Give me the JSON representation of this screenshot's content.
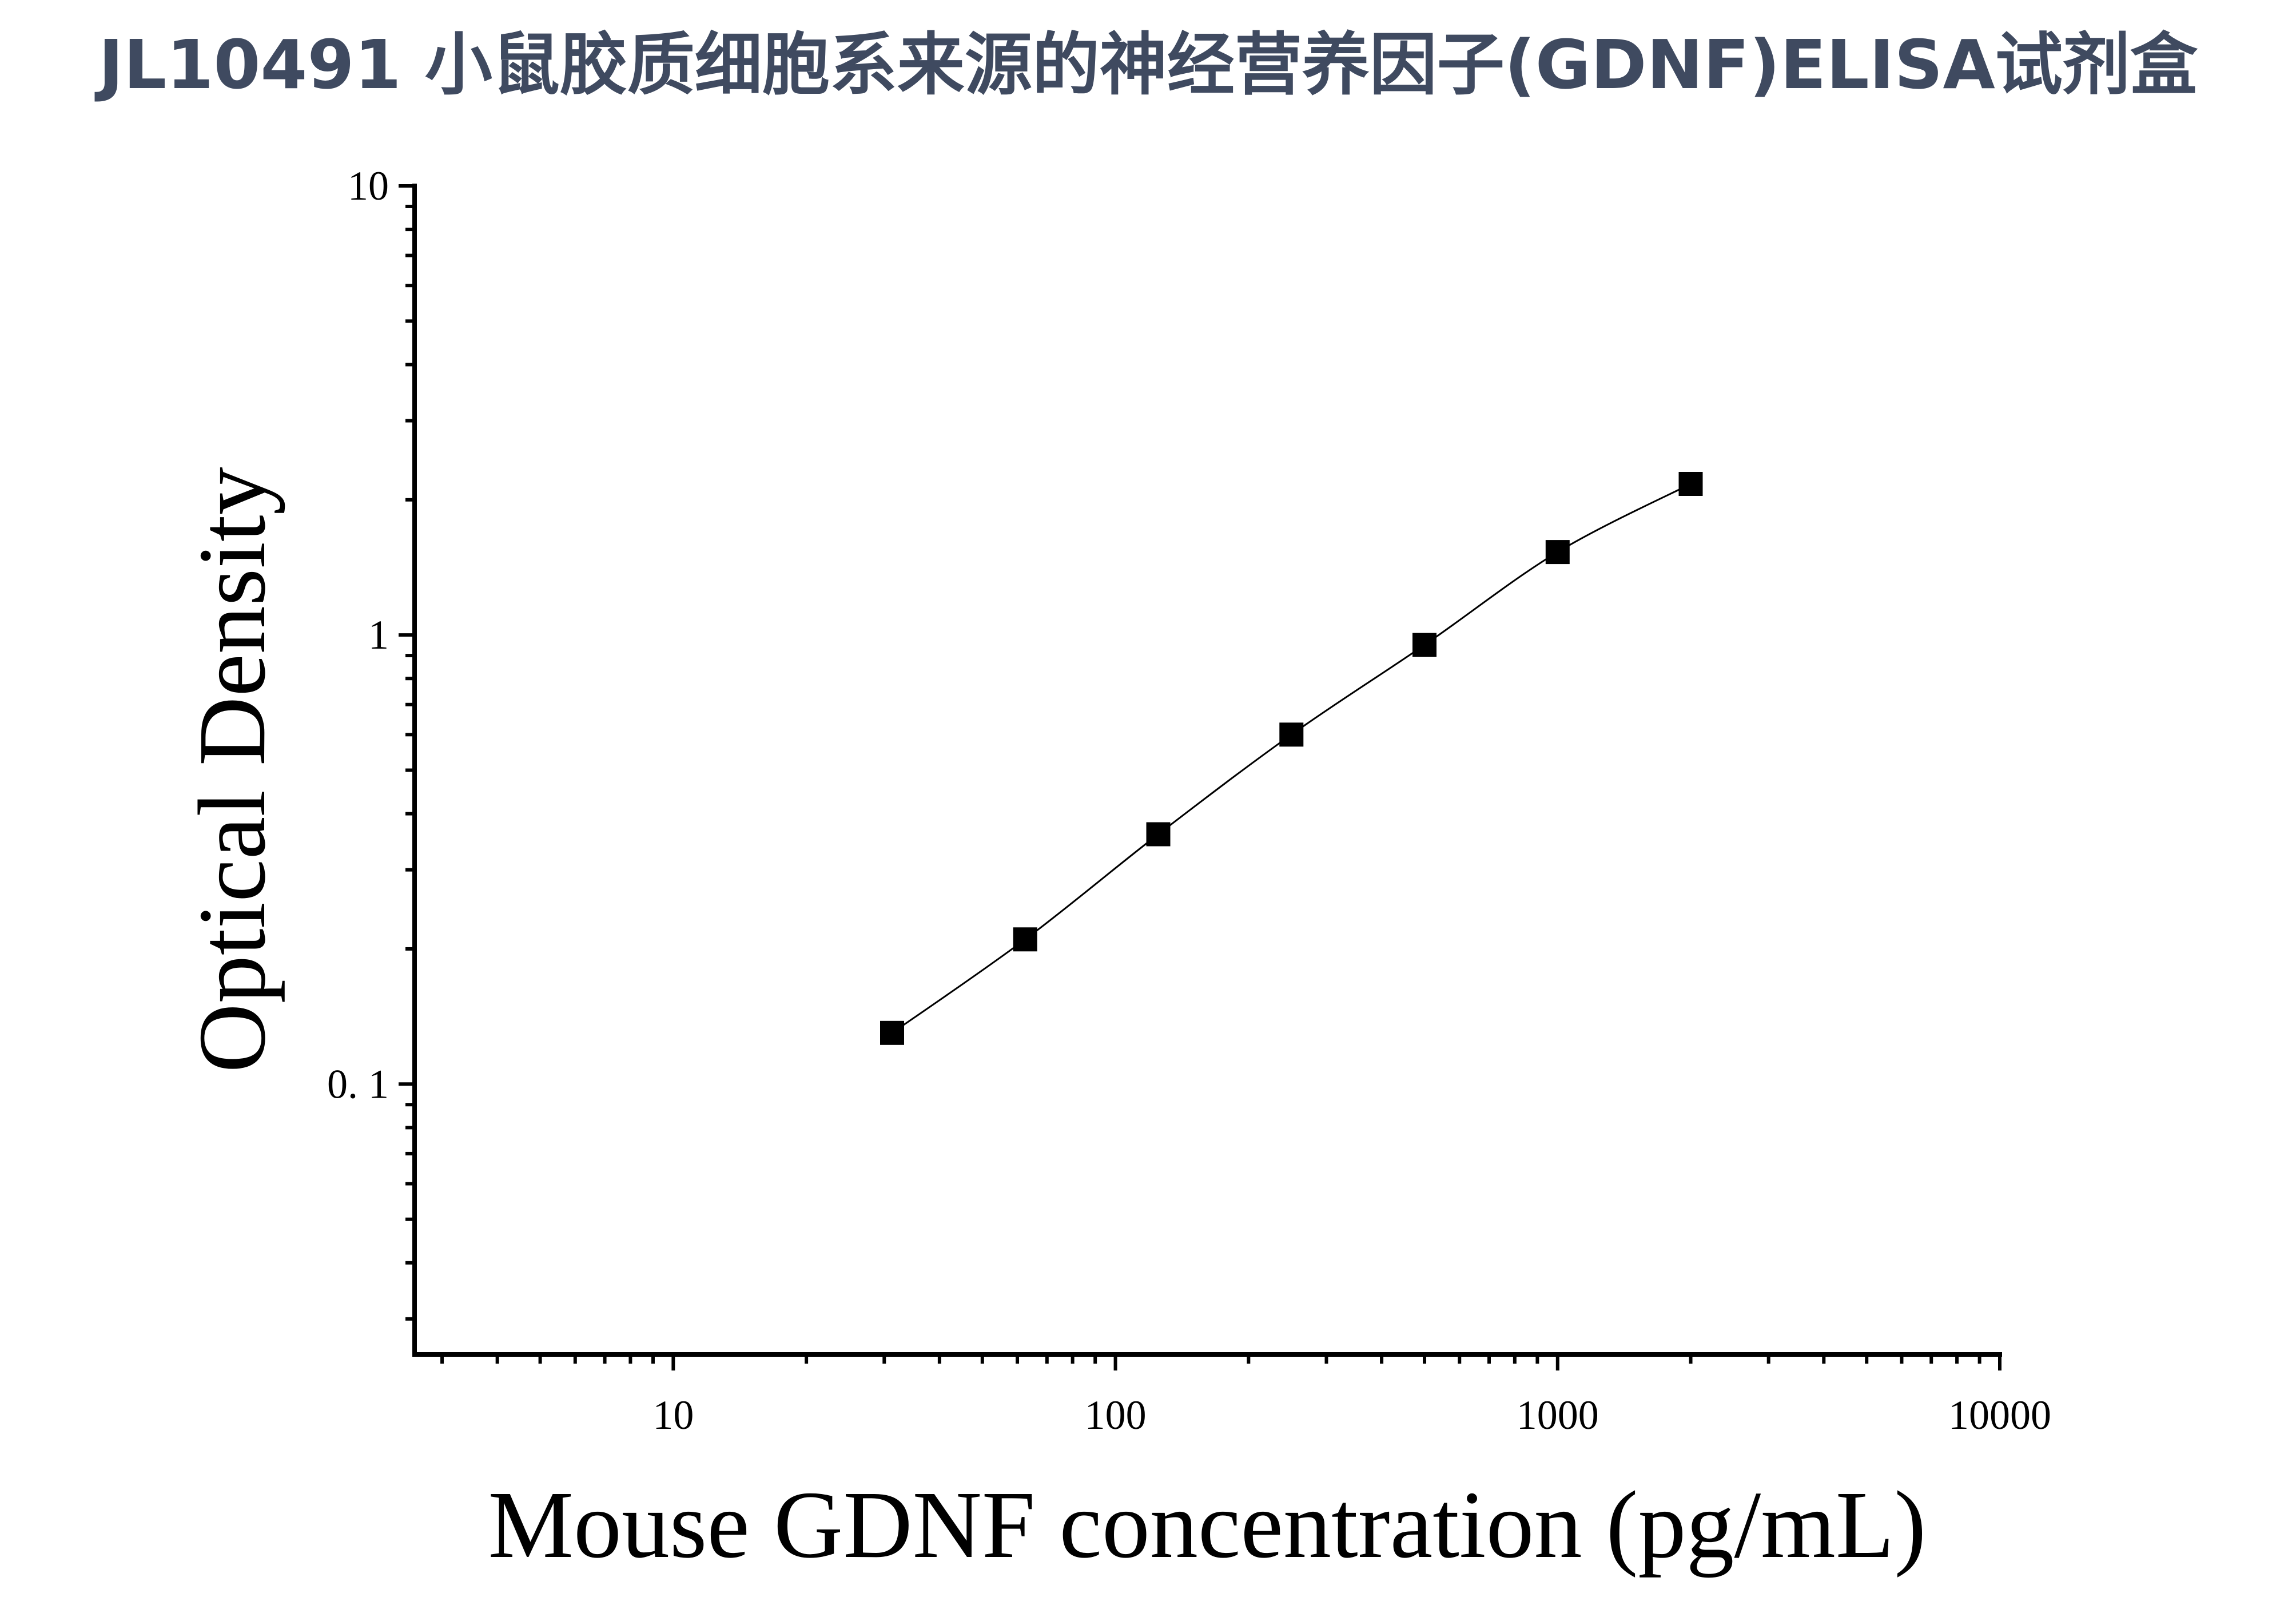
{
  "title": "JL10491 小鼠胶质细胞系来源的神经营养因子(GDNF)ELISA试剂盒",
  "chart_data": {
    "type": "scatter",
    "title": "JL10491 小鼠胶质细胞系来源的神经营养因子(GDNF)ELISA试剂盒",
    "xlabel": "Mouse GDNF concentration (pg/mL)",
    "ylabel": "Optical Density",
    "x_scale": "log",
    "y_scale": "log",
    "xlim": [
      2.6,
      10000
    ],
    "ylim": [
      0.025,
      10
    ],
    "x_ticks": [
      {
        "value": 10,
        "label": "10"
      },
      {
        "value": 100,
        "label": "100"
      },
      {
        "value": 1000,
        "label": "1000"
      },
      {
        "value": 10000,
        "label": "10000"
      }
    ],
    "y_ticks": [
      {
        "value": 0.1,
        "label": "0. 1"
      },
      {
        "value": 1,
        "label": "1"
      },
      {
        "value": 10,
        "label": "10"
      }
    ],
    "series": [
      {
        "marker": "square",
        "line": "smooth fitted curve",
        "color": "#000000",
        "x": [
          31.25,
          62.5,
          125,
          250,
          500,
          1000,
          2000
        ],
        "y": [
          0.13,
          0.21,
          0.36,
          0.6,
          0.95,
          1.53,
          2.17
        ]
      }
    ],
    "grid": false,
    "legend": "none"
  }
}
